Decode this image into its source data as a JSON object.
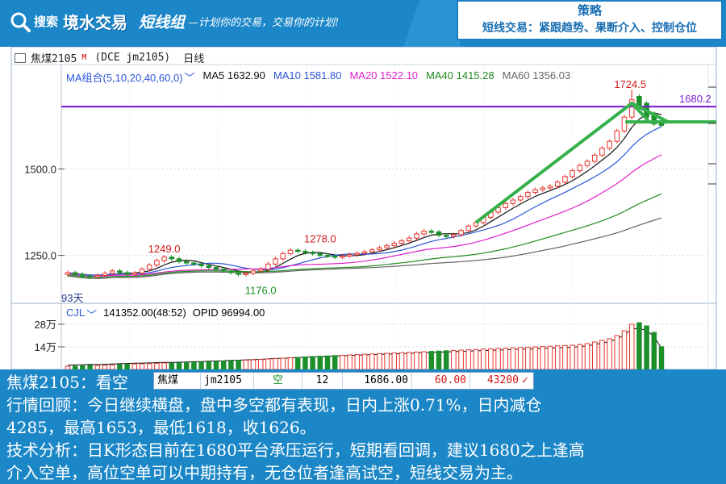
{
  "header": {
    "search_label": "搜索",
    "logo_text": "境水交易",
    "group_name": "短线组",
    "slogan": "—计划你的交易，交易你的计划!",
    "strategy_title": "策略",
    "strategy_text": "短线交易：紧跟趋势、果断介入、控制仓位",
    "colors": {
      "banner": "#1b86c8",
      "banner_dark": "#0f6aae",
      "strategy_border": "#1b7fc4"
    }
  },
  "chart": {
    "title": {
      "name": "焦煤2105",
      "mark": "M",
      "code": "(DCE jm2105)",
      "period": "日线"
    },
    "ma_legend": [
      {
        "label": "MA组合(5,10,20,40,60,0)",
        "color": "#2a55d8"
      },
      {
        "label": "MA5 1632.90",
        "color": "#111111"
      },
      {
        "label": "MA10 1581.80",
        "color": "#2a55d8"
      },
      {
        "label": "MA20 1522.10",
        "color": "#e020c8"
      },
      {
        "label": "MA40 1415.28",
        "color": "#1f8a1f"
      },
      {
        "label": "MA60 1356.03",
        "color": "#666666"
      }
    ],
    "annotations": {
      "high_label": "1724.5",
      "level_label": "1680.2",
      "peak1_label": "1249.0",
      "peak2_label": "1278.0",
      "low_label": "1176.0",
      "corner_label": "93天"
    },
    "price_axis": [
      "1500.0",
      "1250.0"
    ],
    "cjl_legend": {
      "name": "CJL",
      "volume": "141352.00(48:52)",
      "opid": "OPID 96994.00"
    },
    "volume_axis": [
      "28万",
      "14万"
    ],
    "colors": {
      "up": "#e8322a",
      "down": "#1c8f2a",
      "level_line": "#7a1fd4",
      "trend_line": "#35b04a"
    }
  },
  "chart_data": {
    "type": "candlestick",
    "series": [
      {
        "name": "MA5",
        "values": [
          1632.9
        ]
      },
      {
        "name": "MA10",
        "values": [
          1581.8
        ]
      },
      {
        "name": "MA20",
        "values": [
          1522.1
        ]
      },
      {
        "name": "MA40",
        "values": [
          1415.28
        ]
      },
      {
        "name": "MA60",
        "values": [
          1356.03
        ]
      }
    ],
    "close": [
      1200,
      1195,
      1190,
      1188,
      1192,
      1198,
      1205,
      1200,
      1195,
      1199,
      1210,
      1222,
      1235,
      1245,
      1240,
      1232,
      1228,
      1225,
      1220,
      1215,
      1210,
      1205,
      1200,
      1195,
      1198,
      1205,
      1210,
      1225,
      1240,
      1255,
      1265,
      1262,
      1258,
      1255,
      1250,
      1248,
      1245,
      1248,
      1252,
      1256,
      1260,
      1266,
      1272,
      1278,
      1285,
      1292,
      1300,
      1312,
      1320,
      1318,
      1308,
      1305,
      1310,
      1322,
      1335,
      1345,
      1360,
      1375,
      1388,
      1400,
      1410,
      1420,
      1432,
      1440,
      1445,
      1450,
      1462,
      1478,
      1495,
      1510,
      1522,
      1540,
      1560,
      1580,
      1610,
      1650,
      1700,
      1680,
      1650,
      1630,
      1626
    ],
    "open": [
      1195,
      1200,
      1195,
      1190,
      1188,
      1192,
      1198,
      1205,
      1200,
      1195,
      1199,
      1210,
      1222,
      1235,
      1245,
      1240,
      1232,
      1228,
      1225,
      1220,
      1215,
      1210,
      1205,
      1200,
      1195,
      1198,
      1205,
      1210,
      1225,
      1240,
      1255,
      1265,
      1262,
      1258,
      1255,
      1250,
      1248,
      1245,
      1248,
      1252,
      1256,
      1260,
      1266,
      1272,
      1278,
      1285,
      1292,
      1300,
      1312,
      1320,
      1318,
      1308,
      1305,
      1310,
      1322,
      1335,
      1345,
      1360,
      1375,
      1388,
      1400,
      1410,
      1420,
      1432,
      1440,
      1445,
      1450,
      1462,
      1478,
      1495,
      1510,
      1522,
      1540,
      1560,
      1580,
      1610,
      1650,
      1710,
      1690,
      1660,
      1632
    ],
    "volume_wan": [
      2.0,
      2.1,
      2.3,
      2.5,
      2.4,
      2.6,
      2.8,
      3.0,
      3.2,
      3.4,
      3.5,
      3.6,
      3.8,
      4.0,
      3.9,
      4.1,
      4.3,
      4.5,
      4.6,
      4.8,
      5.0,
      5.2,
      5.5,
      5.6,
      5.8,
      6.0,
      6.2,
      6.5,
      6.8,
      7.0,
      7.2,
      7.5,
      7.8,
      8.0,
      8.2,
      8.4,
      8.6,
      8.8,
      9.0,
      9.2,
      9.4,
      9.6,
      9.8,
      10.0,
      10.2,
      10.4,
      10.6,
      10.8,
      11.0,
      11.2,
      11.4,
      11.6,
      11.8,
      12.0,
      12.2,
      12.4,
      12.6,
      12.8,
      13.0,
      13.2,
      13.4,
      13.6,
      13.8,
      14.0,
      14.2,
      14.4,
      14.6,
      14.8,
      15.0,
      15.5,
      16.0,
      17.0,
      18.0,
      19.0,
      21.0,
      24.0,
      28.0,
      29.0,
      27.0,
      23.0,
      14.1
    ],
    "annotations": {
      "high": 1724.5,
      "level": 1680.2,
      "peak1": 1249.0,
      "peak2": 1278.0,
      "low": 1176.0
    },
    "ylim": [
      1130,
      1760
    ]
  },
  "quote": {
    "name": "焦煤",
    "code": "jm2105",
    "direction": "空",
    "qty": "12",
    "price": "1686.00",
    "stop": "60.00",
    "target": "43200",
    "check": "✓"
  },
  "info": {
    "line1": "焦煤2105：看空",
    "line2": "行情回顾：今日继续横盘，盘中多空都有表现，日内上涨0.71%，日内减仓",
    "line3": "4285，最高1653，最低1618，收1626。",
    "line4": "技术分析：日K形态目前在1680平台承压运行，短期看回调，建议1680之上逢高",
    "line5": "介入空单，高位空单可以中期持有，无仓位者逢高试空，短线交易为主。"
  }
}
